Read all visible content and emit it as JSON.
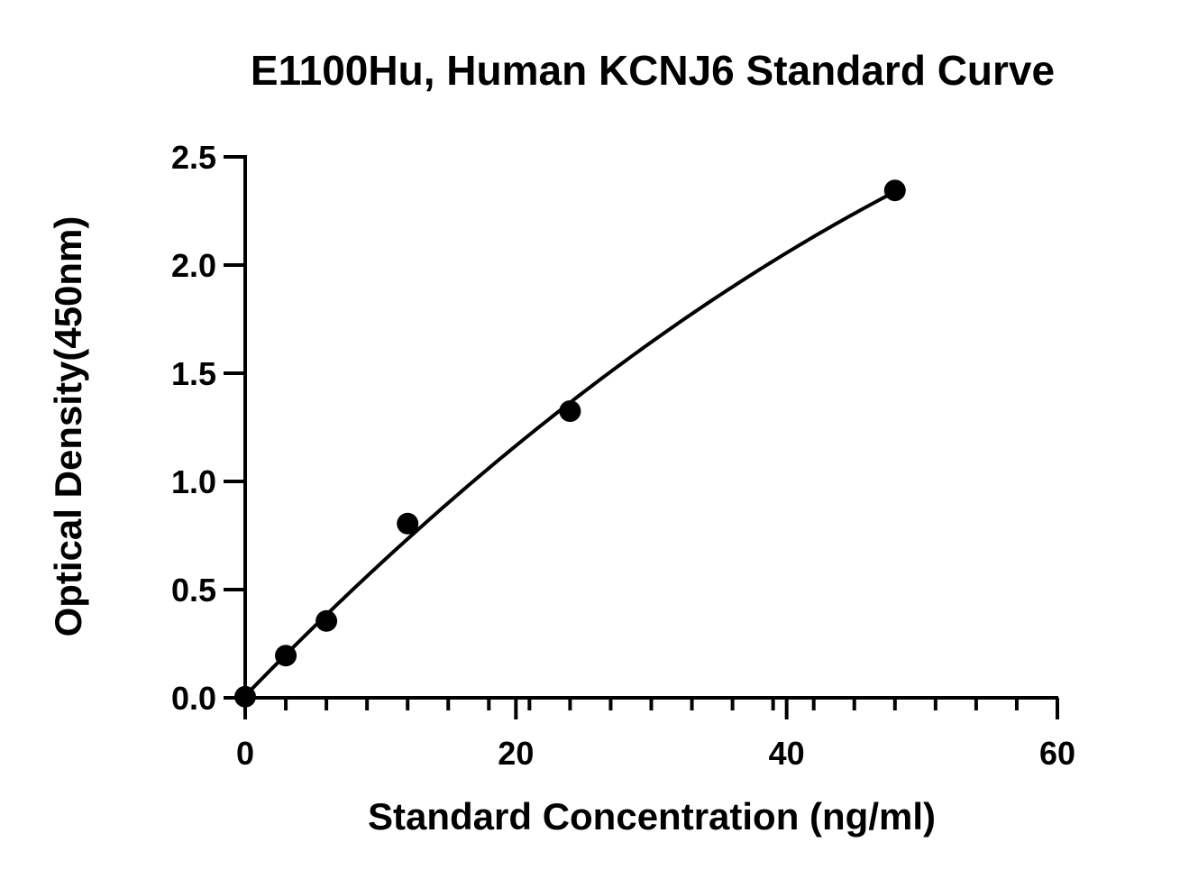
{
  "chart_data": {
    "type": "scatter",
    "title": "E1100Hu, Human KCNJ6 Standard Curve",
    "xlabel": "Standard Concentration (ng/ml)",
    "ylabel": "Optical Density(450nm)",
    "xlim": [
      0,
      60
    ],
    "ylim": [
      0,
      2.5
    ],
    "x_ticks": [
      0,
      20,
      40,
      60
    ],
    "x_tick_labels": [
      "0",
      "20",
      "40",
      "60"
    ],
    "x_minor_step": 3,
    "y_ticks": [
      0,
      0.5,
      1.0,
      1.5,
      2.0,
      2.5
    ],
    "y_tick_labels": [
      "0.0",
      "0.5",
      "1.0",
      "1.5",
      "2.0",
      "2.5"
    ],
    "grid": false,
    "series": [
      {
        "x": [
          0,
          3,
          6,
          12,
          24,
          48
        ],
        "y": [
          0.005,
          0.195,
          0.355,
          0.805,
          1.325,
          2.345
        ],
        "fit": "smooth curve"
      }
    ]
  }
}
